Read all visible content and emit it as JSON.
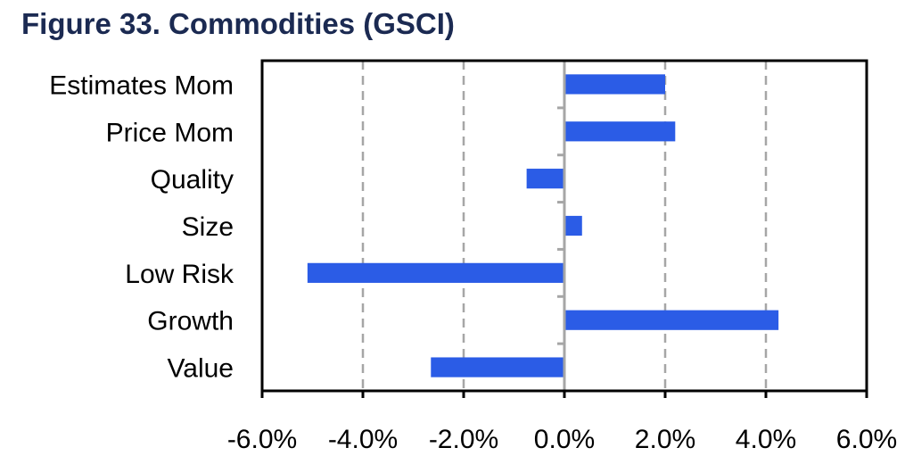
{
  "title": "Figure 33. Commodities (GSCI)",
  "colors": {
    "bar": "#2b5ce6",
    "title": "#1b2a52",
    "grid": "#a6a6a6",
    "zero_axis": "#a6a6a6",
    "frame": "#000000"
  },
  "chart_data": {
    "type": "bar",
    "orientation": "horizontal",
    "title": "Figure 33. Commodities (GSCI)",
    "categories": [
      "Estimates Mom",
      "Price Mom",
      "Quality",
      "Size",
      "Low Risk",
      "Growth",
      "Value"
    ],
    "values": [
      0.02,
      0.022,
      -0.0075,
      0.0035,
      -0.051,
      0.0425,
      -0.0265
    ],
    "xlim": [
      -0.06,
      0.06
    ],
    "xticks": [
      -0.06,
      -0.04,
      -0.02,
      0.0,
      0.02,
      0.04,
      0.06
    ],
    "xtick_labels": [
      "-6.0%",
      "-4.0%",
      "-2.0%",
      "0.0%",
      "2.0%",
      "4.0%",
      "6.0%"
    ],
    "grid": "vertical dashed",
    "legend": "none",
    "xlabel": "",
    "ylabel": ""
  }
}
